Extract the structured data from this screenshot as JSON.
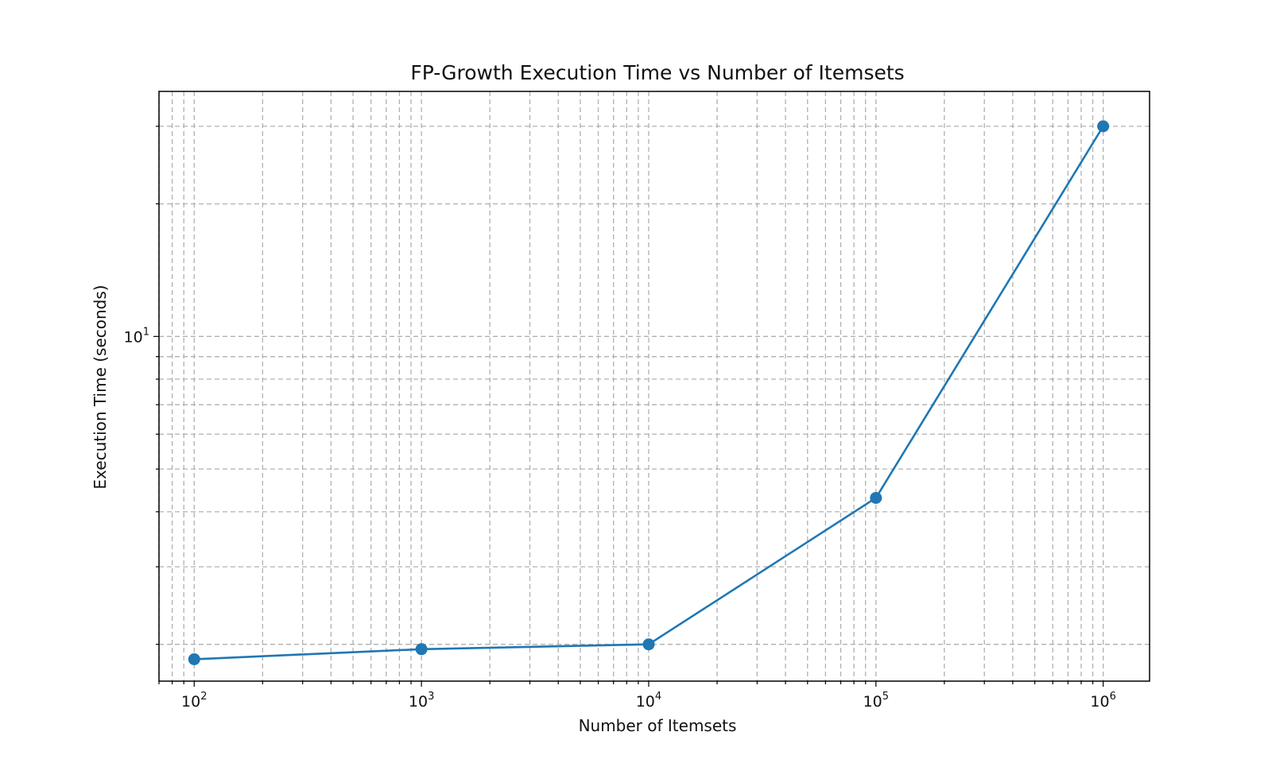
{
  "chart_data": {
    "type": "line",
    "title": "FP-Growth Execution Time vs Number of Itemsets",
    "xlabel": "Number of Itemsets",
    "ylabel": "Execution Time (seconds)",
    "x_scale": "log",
    "y_scale": "log",
    "xlim": [
      70,
      1600000
    ],
    "ylim": [
      1.65,
      36
    ],
    "grid": true,
    "grid_which": "both",
    "x_ticks": [
      {
        "value": 100,
        "base": "10",
        "exp": "2"
      },
      {
        "value": 1000,
        "base": "10",
        "exp": "3"
      },
      {
        "value": 10000,
        "base": "10",
        "exp": "4"
      },
      {
        "value": 100000,
        "base": "10",
        "exp": "5"
      },
      {
        "value": 1000000,
        "base": "10",
        "exp": "6"
      }
    ],
    "y_ticks": [
      {
        "value": 10,
        "base": "10",
        "exp": "1"
      }
    ],
    "series": [
      {
        "color": "#1f77b4",
        "marker": "circle",
        "x": [
          100,
          1000,
          10000,
          100000,
          1000000
        ],
        "y": [
          1.85,
          1.95,
          2.0,
          4.3,
          30.0
        ]
      }
    ]
  }
}
